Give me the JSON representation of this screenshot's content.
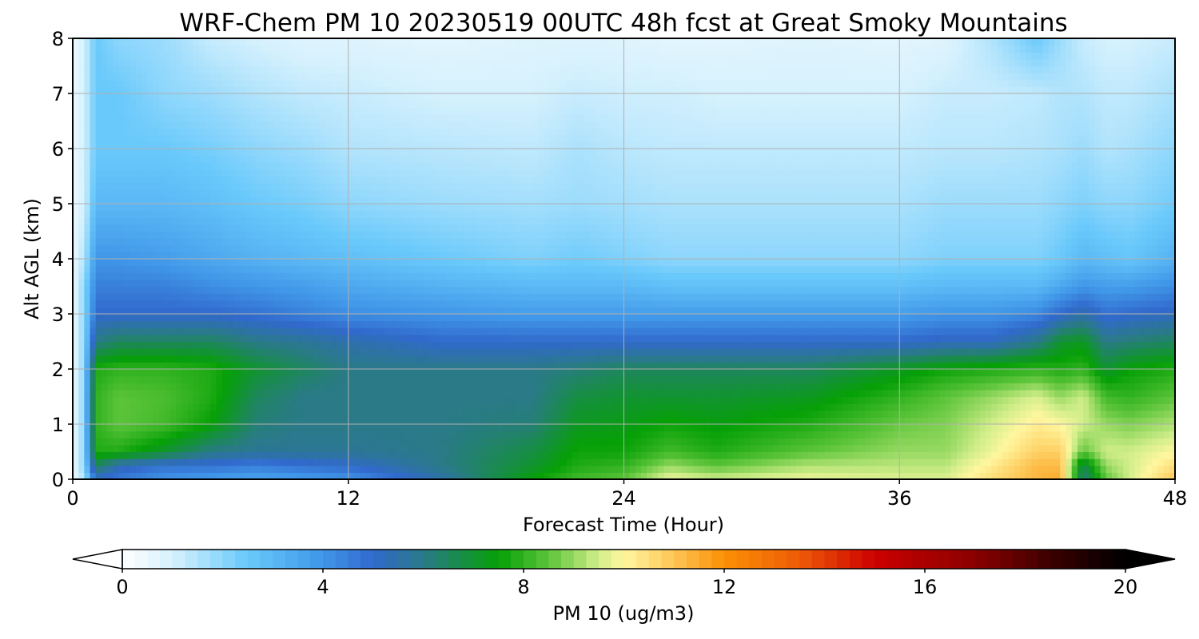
{
  "chart_data": {
    "type": "heatmap",
    "title": "WRF-Chem PM 10  20230519 00UTC 48h fcst at Great Smoky Mountains",
    "xlabel": "Forecast Time (Hour)",
    "ylabel": "Alt AGL (km)",
    "xlim": [
      0,
      48
    ],
    "ylim": [
      0,
      8
    ],
    "xticks": [
      "0",
      "12",
      "24",
      "36",
      "48"
    ],
    "yticks": [
      "0",
      "1",
      "2",
      "3",
      "4",
      "5",
      "6",
      "7",
      "8"
    ],
    "grid": true,
    "colorbar": {
      "label": "PM 10  (ug/m3)",
      "range": [
        0,
        20
      ],
      "ticks": [
        "0",
        "4",
        "8",
        "12",
        "16",
        "20"
      ],
      "extend": "both",
      "stops": [
        {
          "v": 0,
          "c": "#ffffff"
        },
        {
          "v": 1,
          "c": "#d6f1fd"
        },
        {
          "v": 2.5,
          "c": "#69c9fb"
        },
        {
          "v": 4,
          "c": "#4096e8"
        },
        {
          "v": 5,
          "c": "#3169cc"
        },
        {
          "v": 6,
          "c": "#2a7a88"
        },
        {
          "v": 7.5,
          "c": "#06a006"
        },
        {
          "v": 8.5,
          "c": "#5cc43a"
        },
        {
          "v": 9.5,
          "c": "#d2ee8a"
        },
        {
          "v": 10,
          "c": "#fff7a0"
        },
        {
          "v": 11,
          "c": "#fdc555"
        },
        {
          "v": 12,
          "c": "#fb9005"
        },
        {
          "v": 13.5,
          "c": "#ee5a08"
        },
        {
          "v": 15,
          "c": "#cc0000"
        },
        {
          "v": 17,
          "c": "#8a0000"
        },
        {
          "v": 18.5,
          "c": "#3c0000"
        },
        {
          "v": 20,
          "c": "#000000"
        }
      ]
    },
    "times": [
      0,
      0.5,
      1,
      2,
      4,
      6,
      8,
      10,
      12,
      16,
      20,
      22,
      24,
      26,
      28,
      32,
      36,
      38,
      40,
      42,
      43,
      44,
      45,
      46,
      48
    ],
    "alts": [
      0,
      0.25,
      0.5,
      1,
      1.5,
      2,
      2.5,
      3,
      3.5,
      4,
      5,
      6,
      7,
      8
    ],
    "values": [
      [
        0.5,
        0.5,
        0.5,
        0.5,
        0.5,
        0.5,
        0.5,
        0.5,
        0.5,
        0.5,
        0.5,
        0.5,
        0.5,
        0.5
      ],
      [
        1.5,
        2.0,
        2.0,
        2.0,
        2.0,
        2.0,
        2.0,
        2.0,
        2.0,
        1.5,
        1.0,
        1.0,
        1.0,
        1.0
      ],
      [
        5.0,
        6.5,
        7.8,
        8.0,
        8.0,
        7.8,
        6.0,
        5.0,
        4.5,
        4.0,
        3.0,
        2.5,
        2.5,
        2.5
      ],
      [
        4.6,
        5.3,
        7.8,
        8.5,
        8.5,
        8.0,
        6.5,
        5.0,
        4.5,
        4.0,
        3.0,
        2.5,
        2.5,
        2.0
      ],
      [
        4.0,
        4.8,
        7.0,
        8.2,
        8.3,
        8.0,
        6.5,
        5.0,
        4.5,
        3.8,
        3.0,
        2.5,
        2.0,
        1.8
      ],
      [
        3.8,
        4.8,
        6.0,
        7.5,
        7.8,
        7.8,
        6.5,
        5.0,
        4.2,
        3.5,
        2.8,
        2.3,
        1.8,
        1.2
      ],
      [
        3.6,
        4.5,
        5.8,
        6.2,
        6.5,
        7.0,
        6.0,
        4.8,
        4.0,
        3.2,
        2.5,
        2.0,
        1.5,
        1.0
      ],
      [
        3.8,
        4.8,
        5.8,
        6.0,
        6.0,
        6.5,
        5.8,
        4.5,
        3.8,
        3.0,
        2.3,
        1.8,
        1.3,
        0.8
      ],
      [
        4.0,
        5.0,
        5.8,
        6.0,
        6.0,
        6.0,
        5.5,
        4.2,
        3.5,
        2.8,
        2.0,
        1.5,
        1.2,
        0.8
      ],
      [
        5.5,
        6.0,
        6.0,
        6.0,
        6.0,
        6.0,
        5.0,
        4.0,
        3.2,
        2.5,
        1.8,
        1.4,
        1.0,
        0.7
      ],
      [
        7.5,
        7.0,
        6.8,
        6.2,
        6.0,
        6.0,
        5.0,
        3.8,
        3.0,
        2.2,
        1.7,
        1.3,
        1.0,
        0.8
      ],
      [
        8.2,
        7.8,
        7.6,
        7.2,
        6.8,
        6.2,
        5.0,
        3.8,
        3.0,
        2.4,
        1.8,
        1.6,
        1.2,
        0.8
      ],
      [
        8.5,
        8.0,
        7.6,
        7.3,
        7.0,
        6.5,
        5.0,
        3.8,
        3.0,
        2.2,
        1.7,
        1.4,
        1.1,
        0.8
      ],
      [
        9.8,
        9.0,
        8.2,
        7.6,
        7.0,
        6.5,
        5.0,
        3.8,
        2.8,
        2.0,
        1.6,
        1.3,
        1.1,
        0.7
      ],
      [
        9.5,
        8.5,
        7.8,
        7.4,
        7.0,
        6.5,
        5.0,
        3.8,
        2.8,
        2.0,
        1.6,
        1.3,
        1.0,
        0.7
      ],
      [
        9.8,
        9.2,
        8.5,
        7.8,
        7.2,
        6.5,
        5.0,
        3.8,
        2.8,
        2.0,
        1.6,
        1.3,
        1.0,
        0.8
      ],
      [
        9.6,
        9.3,
        9.0,
        8.6,
        8.0,
        7.2,
        5.0,
        3.8,
        2.8,
        2.0,
        1.6,
        1.3,
        1.0,
        0.7
      ],
      [
        9.6,
        9.3,
        9.0,
        8.8,
        8.5,
        7.6,
        5.2,
        4.0,
        3.0,
        2.2,
        1.8,
        1.4,
        1.2,
        0.8
      ],
      [
        10.5,
        10.2,
        9.8,
        9.5,
        9.0,
        7.8,
        5.2,
        4.0,
        3.0,
        2.2,
        1.8,
        1.4,
        1.2,
        1.5
      ],
      [
        11.3,
        11.2,
        10.8,
        10.2,
        9.6,
        8.0,
        6.0,
        4.3,
        3.0,
        2.2,
        1.8,
        1.5,
        1.3,
        2.5
      ],
      [
        11.5,
        11.2,
        10.8,
        10.0,
        9.0,
        7.8,
        7.0,
        5.0,
        3.5,
        2.5,
        2.0,
        1.6,
        1.5,
        1.8
      ],
      [
        6.0,
        6.5,
        8.5,
        9.5,
        9.5,
        8.0,
        7.2,
        5.5,
        4.0,
        3.0,
        2.2,
        1.8,
        1.5,
        1.2
      ],
      [
        8.5,
        9.0,
        9.5,
        9.0,
        8.2,
        7.0,
        6.0,
        4.8,
        3.8,
        2.8,
        2.0,
        1.5,
        1.3,
        1.0
      ],
      [
        9.5,
        9.5,
        9.5,
        8.8,
        8.0,
        7.5,
        6.2,
        5.0,
        3.8,
        2.6,
        2.0,
        1.6,
        1.3,
        1.0
      ],
      [
        11.0,
        10.5,
        10.0,
        9.2,
        8.5,
        7.8,
        6.5,
        5.2,
        4.2,
        3.2,
        2.4,
        2.0,
        1.6,
        1.2
      ]
    ]
  }
}
